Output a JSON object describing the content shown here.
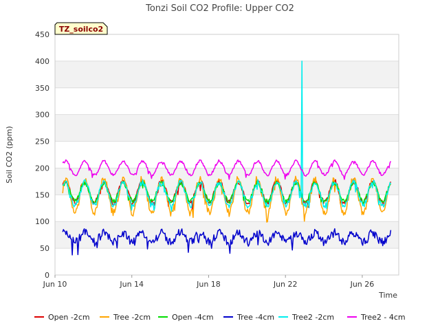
{
  "chart_data": {
    "type": "line",
    "title": "Tonzi Soil CO2 Profile: Upper CO2",
    "xlabel": "Time",
    "ylabel": "Soil CO2 (ppm)",
    "ylim": [
      0,
      450
    ],
    "yticks": [
      0,
      50,
      100,
      150,
      200,
      250,
      300,
      350,
      400,
      450
    ],
    "xlim": [
      10,
      27.9
    ],
    "xticks": [
      {
        "day": 10,
        "label": "Jun 10"
      },
      {
        "day": 14,
        "label": "Jun 14"
      },
      {
        "day": 18,
        "label": "Jun 18"
      },
      {
        "day": 22,
        "label": "Jun 22"
      },
      {
        "day": 26,
        "label": "Jun 26"
      }
    ],
    "grid": true,
    "legend_position": "bottom",
    "badge": "TZ_soilco2",
    "x_range_days": [
      10.4,
      27.5
    ],
    "points_per_day": 24,
    "series": [
      {
        "name": "Open -2cm",
        "color": "#dd0000",
        "base": 155,
        "amp": 20,
        "noise": 5,
        "spikes": []
      },
      {
        "name": "Tree -2cm",
        "color": "#ffa500",
        "base": 148,
        "amp": 32,
        "noise": 7,
        "spikes": []
      },
      {
        "name": "Open -4cm",
        "color": "#00dd00",
        "base": 155,
        "amp": 17,
        "noise": 4,
        "spikes": []
      },
      {
        "name": "Tree -4cm",
        "color": "#0000cc",
        "base": 70,
        "amp": 9,
        "noise": 8,
        "spikes": []
      },
      {
        "name": "Tree2 -2cm",
        "color": "#00eeee",
        "base": 152,
        "amp": 22,
        "noise": 5,
        "spikes": [
          {
            "day": 22.87,
            "value": 400
          }
        ]
      },
      {
        "name": "Tree2 - 4cm",
        "color": "#ee00ee",
        "base": 200,
        "amp": 13,
        "noise": 2.5,
        "spikes": []
      }
    ]
  }
}
